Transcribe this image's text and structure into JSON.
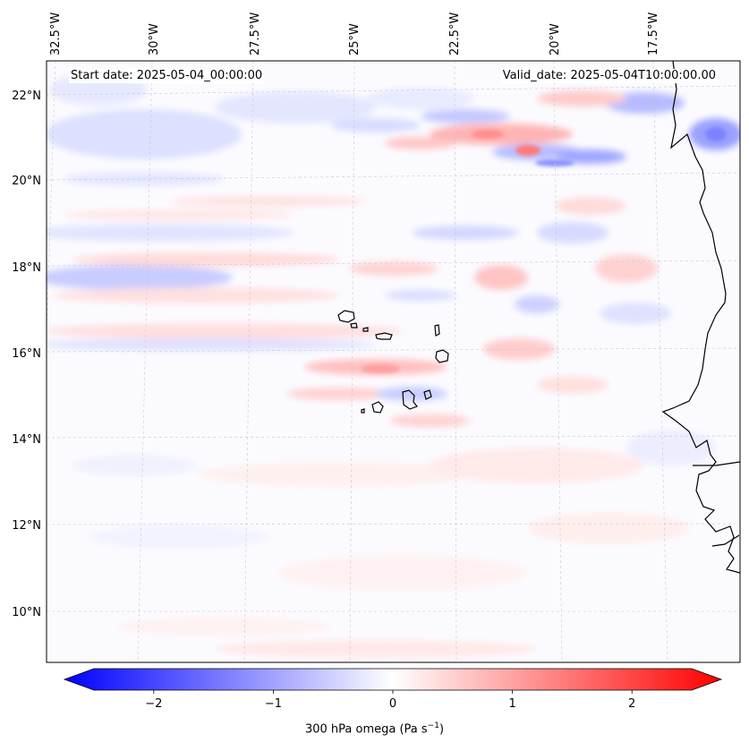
{
  "map": {
    "title_left": "Start date: 2025-05-04_00:00:00",
    "title_right": "Valid_date: 2025-05-04T10:00:00.00",
    "lon_labels": [
      "32.5°W",
      "30°W",
      "27.5°W",
      "25°W",
      "22.5°W",
      "20°W",
      "17.5°W"
    ],
    "lat_labels": [
      "22°N",
      "20°N",
      "18°N",
      "16°N",
      "14°N",
      "12°N",
      "10°N"
    ],
    "extent": {
      "lon_min": -33.0,
      "lon_max": -15.5,
      "lat_min": 8.9,
      "lat_max": 22.7
    },
    "field": "300 hPa omega",
    "land_features": [
      "West African coastline",
      "Cape Verde islands"
    ]
  },
  "colorbar": {
    "label_main": "300 hPa omega (Pa s",
    "label_exp": "−1",
    "label_close": ")",
    "ticks": [
      "−2",
      "−1",
      "0",
      "1",
      "2"
    ],
    "tick_values": [
      -2,
      -1,
      0,
      1,
      2
    ],
    "vmin": -2.5,
    "vmax": 2.5,
    "colors": {
      "low": "#0000ff",
      "mid": "#ffffff",
      "high": "#ff0000"
    }
  }
}
